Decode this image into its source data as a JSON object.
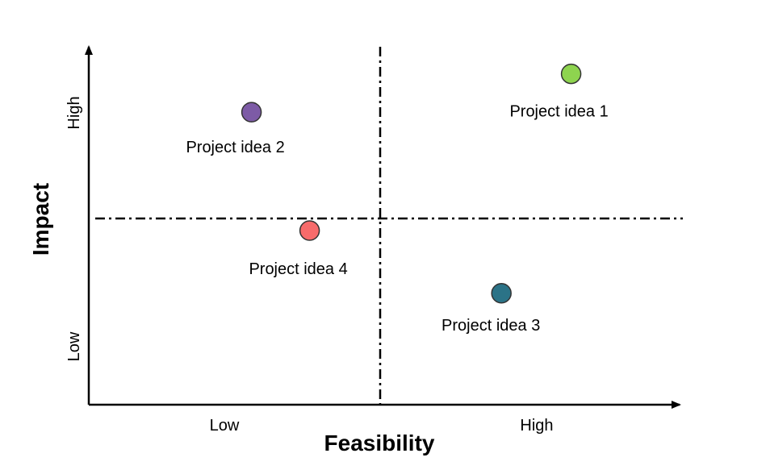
{
  "chart_data": {
    "type": "scatter",
    "title": "",
    "xlabel": "Feasibility",
    "ylabel": "Impact",
    "xlim": [
      0,
      1
    ],
    "ylim": [
      0,
      1
    ],
    "x_ticks": [
      "Low",
      "High"
    ],
    "y_ticks": [
      "Low",
      "High"
    ],
    "quadrant_dividers": {
      "x": 0.5,
      "y": 0.5
    },
    "grid": false,
    "legend": "none",
    "points": [
      {
        "label": "Project idea 1",
        "x": 0.83,
        "y": 0.95,
        "color": "#8ed44f"
      },
      {
        "label": "Project idea 2",
        "x": 0.28,
        "y": 0.84,
        "color": "#7d5ba6"
      },
      {
        "label": "Project idea 3",
        "x": 0.71,
        "y": 0.32,
        "color": "#2b7387"
      },
      {
        "label": "Project idea 4",
        "x": 0.38,
        "y": 0.5,
        "color": "#f76b6b"
      }
    ]
  }
}
